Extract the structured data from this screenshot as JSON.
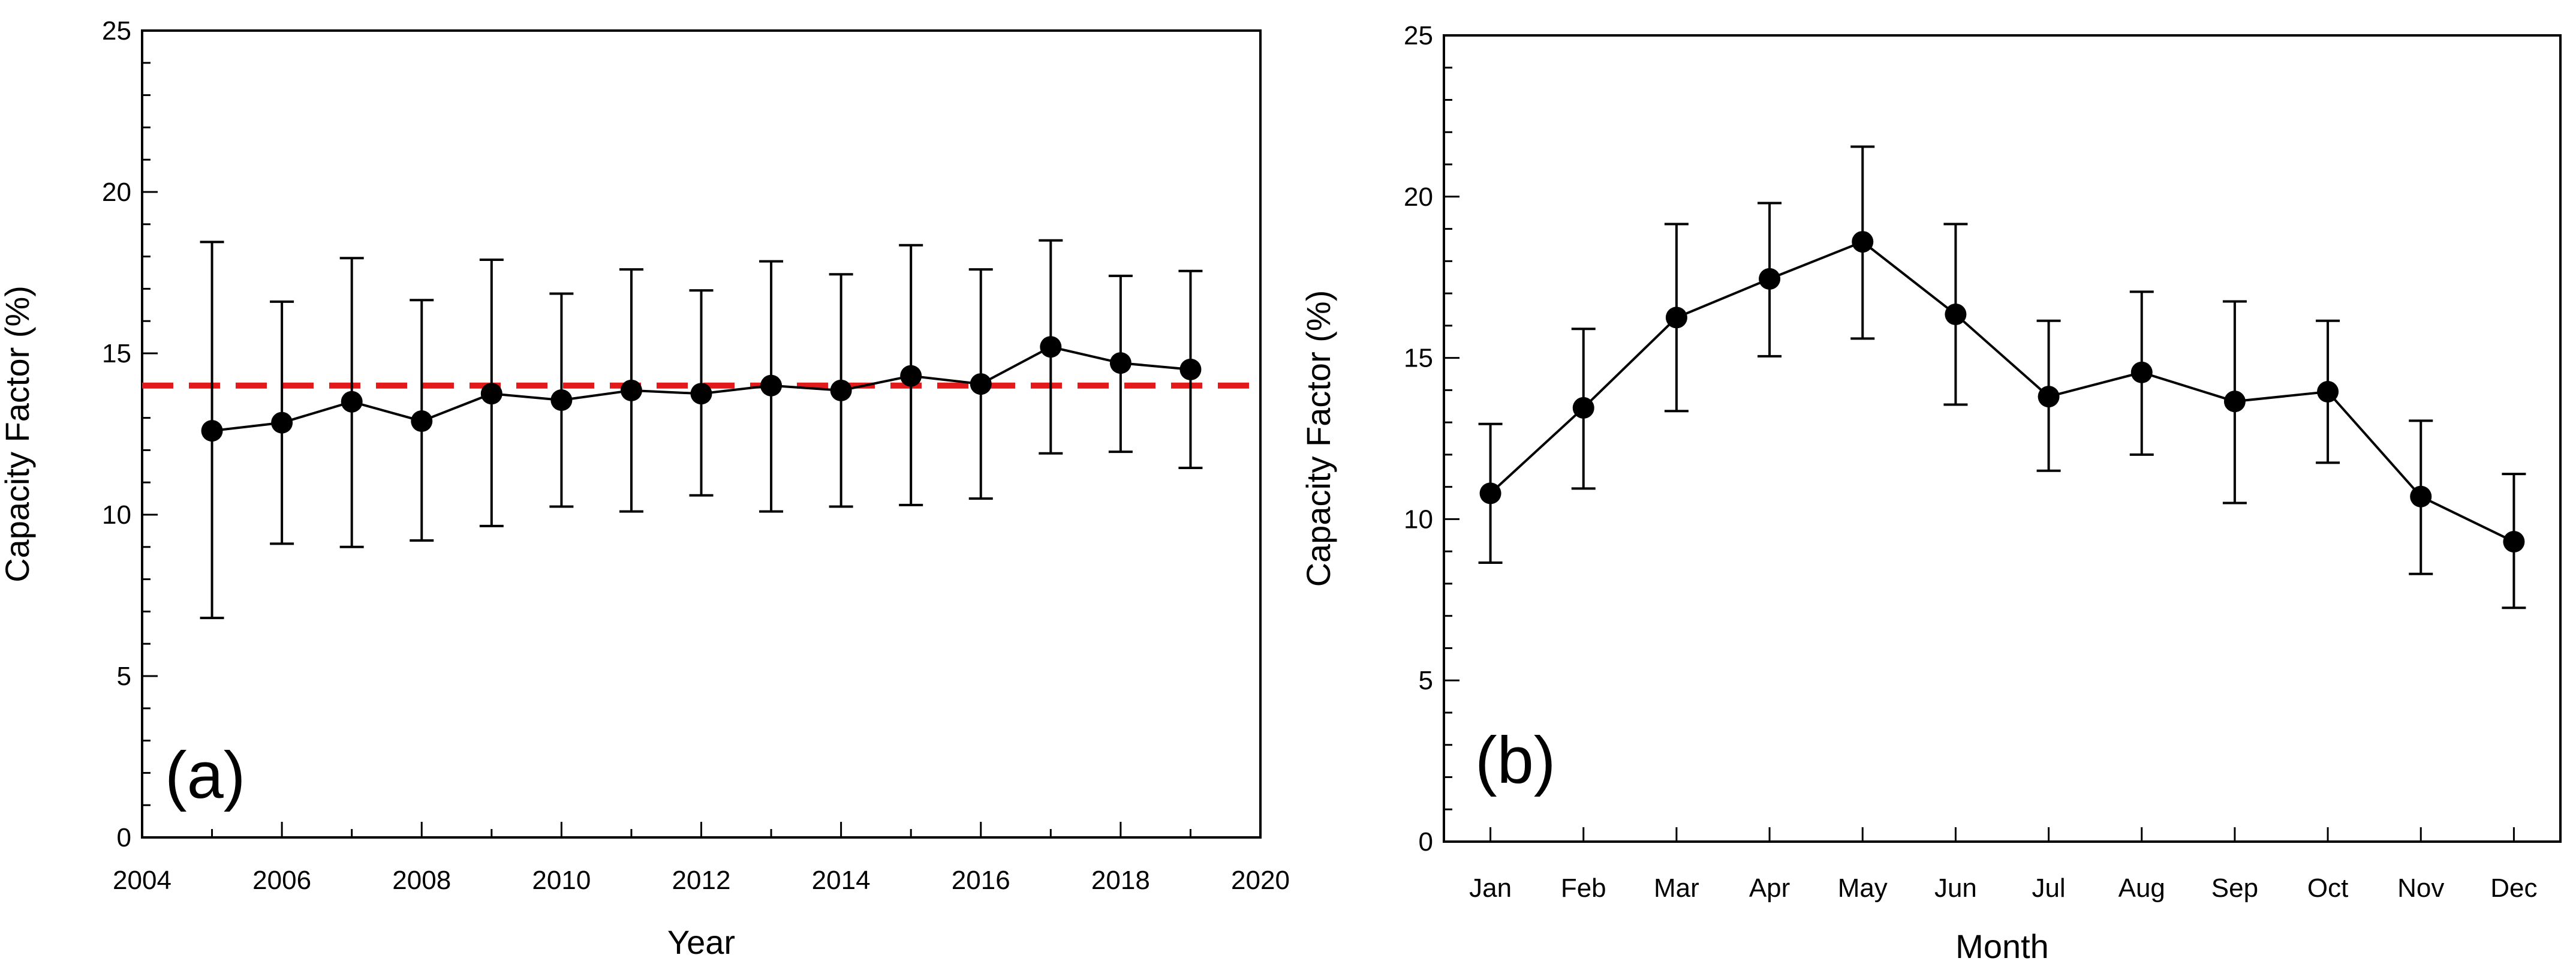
{
  "chart_data": [
    {
      "type": "line",
      "panel_label": "(a)",
      "xlabel": "Year",
      "ylabel": "Capacity Factor (%)",
      "xlim": [
        2004,
        2020
      ],
      "ylim": [
        0,
        25
      ],
      "xticks": [
        2004,
        2006,
        2008,
        2010,
        2012,
        2014,
        2016,
        2018,
        2020
      ],
      "yticks": [
        0,
        5,
        10,
        15,
        20,
        25
      ],
      "grid": false,
      "legend": "none",
      "series": [
        {
          "x": [
            2005,
            2006,
            2007,
            2008,
            2009,
            2010,
            2011,
            2012,
            2013,
            2014,
            2015,
            2016,
            2017,
            2018,
            2019
          ],
          "y": [
            12.6,
            12.85,
            13.5,
            12.9,
            13.75,
            13.55,
            13.85,
            13.75,
            14.0,
            13.85,
            14.3,
            14.05,
            15.2,
            14.7,
            14.5
          ],
          "err_low": [
            6.8,
            9.1,
            9.0,
            9.2,
            9.65,
            10.25,
            10.1,
            10.6,
            10.1,
            10.25,
            10.3,
            10.5,
            11.9,
            11.95,
            11.45
          ],
          "err_high": [
            18.45,
            16.6,
            17.95,
            16.65,
            17.9,
            16.85,
            17.6,
            16.95,
            17.85,
            17.45,
            18.35,
            17.6,
            18.5,
            17.4,
            17.55
          ],
          "color": "#000000"
        }
      ],
      "reference_line": {
        "y": 14.0,
        "style": "dashed",
        "color": "#e31a1c"
      }
    },
    {
      "type": "line",
      "panel_label": "(b)",
      "xlabel": "Month",
      "ylabel": "Capacity Factor (%)",
      "ylim": [
        0,
        25
      ],
      "yticks": [
        0,
        5,
        10,
        15,
        20,
        25
      ],
      "grid": false,
      "legend": "none",
      "categories": [
        "Jan",
        "Feb",
        "Mar",
        "Apr",
        "May",
        "Jun",
        "Jul",
        "Aug",
        "Sep",
        "Oct",
        "Nov",
        "Dec"
      ],
      "series": [
        {
          "y": [
            10.8,
            13.45,
            16.25,
            17.45,
            18.6,
            16.35,
            13.8,
            14.55,
            13.65,
            13.95,
            10.7,
            9.3
          ],
          "err_low": [
            8.65,
            10.95,
            13.35,
            15.05,
            15.6,
            13.55,
            11.5,
            12.0,
            10.5,
            11.75,
            8.3,
            7.25
          ],
          "err_high": [
            12.95,
            15.9,
            19.15,
            19.8,
            21.55,
            19.15,
            16.15,
            17.05,
            16.75,
            16.15,
            13.05,
            11.4
          ],
          "color": "#000000"
        }
      ]
    }
  ]
}
